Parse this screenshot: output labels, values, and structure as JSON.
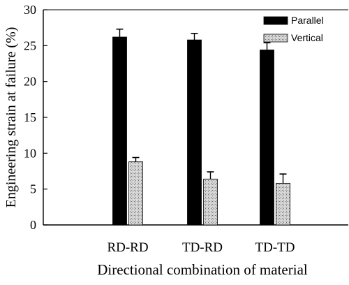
{
  "chart_data": {
    "type": "bar",
    "title": "",
    "xlabel": "Directional combination of material",
    "ylabel": "Engineering strain at failure (%)",
    "categories": [
      "RD-RD",
      "TD-RD",
      "TD-TD"
    ],
    "ylim": [
      0,
      30
    ],
    "yticks": [
      0,
      5,
      10,
      15,
      20,
      25,
      30
    ],
    "grid": false,
    "legend_position": "top-right",
    "series": [
      {
        "name": "Parallel",
        "values": [
          26.2,
          25.8,
          24.4
        ],
        "errors": [
          1.1,
          0.9,
          1.0
        ],
        "color": "#000000",
        "pattern": "solid"
      },
      {
        "name": "Vertical",
        "values": [
          8.8,
          6.4,
          5.8
        ],
        "errors": [
          0.6,
          1.0,
          1.3
        ],
        "color": "#c8c8c8",
        "pattern": "stipple"
      }
    ]
  }
}
